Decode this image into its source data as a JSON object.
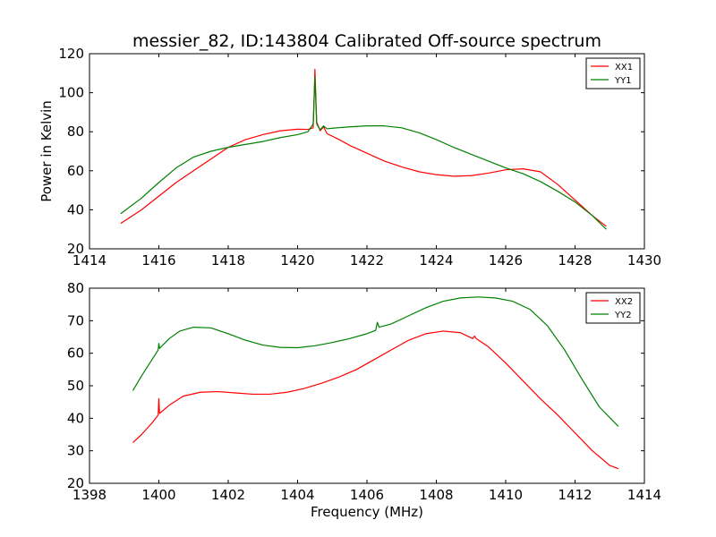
{
  "title": "messier_82, ID:143804 Calibrated Off-source spectrum",
  "chart_data": [
    {
      "type": "line",
      "xlim": [
        1414,
        1430
      ],
      "ylim": [
        20,
        120
      ],
      "xticks": [
        "1414",
        "1416",
        "1418",
        "1420",
        "1422",
        "1424",
        "1426",
        "1428",
        "1430"
      ],
      "yticks": [
        "20",
        "40",
        "60",
        "80",
        "100",
        "120"
      ],
      "xlabel": "",
      "ylabel": "Power in Kelvin",
      "legend": "top-right",
      "grid": false,
      "series": [
        {
          "name": "XX1",
          "color": "#ff0000",
          "points": [
            [
              1414.9,
              33
            ],
            [
              1415.5,
              40
            ],
            [
              1416.0,
              47
            ],
            [
              1416.5,
              54
            ],
            [
              1417.0,
              60
            ],
            [
              1417.5,
              66
            ],
            [
              1418.0,
              72
            ],
            [
              1418.5,
              76
            ],
            [
              1419.0,
              78.5
            ],
            [
              1419.5,
              80.5
            ],
            [
              1420.0,
              81.3
            ],
            [
              1420.3,
              81.2
            ],
            [
              1420.45,
              82
            ],
            [
              1420.5,
              112
            ],
            [
              1420.55,
              85
            ],
            [
              1420.65,
              80.5
            ],
            [
              1420.75,
              82.5
            ],
            [
              1420.85,
              79
            ],
            [
              1421.2,
              76
            ],
            [
              1421.5,
              73
            ],
            [
              1422.0,
              69
            ],
            [
              1422.5,
              65
            ],
            [
              1423.0,
              62
            ],
            [
              1423.5,
              59.5
            ],
            [
              1424.0,
              58
            ],
            [
              1424.5,
              57.2
            ],
            [
              1425.0,
              57.5
            ],
            [
              1425.5,
              58.8
            ],
            [
              1426.0,
              60.5
            ],
            [
              1426.5,
              61
            ],
            [
              1427.0,
              59.5
            ],
            [
              1427.5,
              53
            ],
            [
              1428.0,
              45
            ],
            [
              1428.5,
              37
            ],
            [
              1428.9,
              31.5
            ]
          ]
        },
        {
          "name": "YY1",
          "color": "#008000",
          "points": [
            [
              1414.9,
              38
            ],
            [
              1415.5,
              46
            ],
            [
              1416.0,
              54
            ],
            [
              1416.5,
              61.5
            ],
            [
              1417.0,
              67
            ],
            [
              1417.5,
              70
            ],
            [
              1418.0,
              72
            ],
            [
              1418.5,
              73.5
            ],
            [
              1419.0,
              75
            ],
            [
              1419.5,
              77
            ],
            [
              1420.0,
              78.5
            ],
            [
              1420.3,
              80
            ],
            [
              1420.45,
              84
            ],
            [
              1420.5,
              108
            ],
            [
              1420.55,
              84
            ],
            [
              1420.65,
              81
            ],
            [
              1420.75,
              83
            ],
            [
              1420.85,
              81.5
            ],
            [
              1421.0,
              81.8
            ],
            [
              1421.5,
              82.5
            ],
            [
              1422.0,
              83
            ],
            [
              1422.5,
              83
            ],
            [
              1423.0,
              82
            ],
            [
              1423.5,
              79.5
            ],
            [
              1424.0,
              76
            ],
            [
              1424.5,
              72
            ],
            [
              1425.0,
              68.5
            ],
            [
              1425.5,
              65
            ],
            [
              1426.0,
              61.5
            ],
            [
              1426.5,
              58.5
            ],
            [
              1427.0,
              54.5
            ],
            [
              1427.5,
              49.5
            ],
            [
              1428.0,
              44
            ],
            [
              1428.5,
              37
            ],
            [
              1428.9,
              30
            ]
          ]
        }
      ]
    },
    {
      "type": "line",
      "xlim": [
        1398,
        1414
      ],
      "ylim": [
        20,
        80
      ],
      "xticks": [
        "1398",
        "1400",
        "1402",
        "1404",
        "1406",
        "1408",
        "1410",
        "1412",
        "1414"
      ],
      "yticks": [
        "20",
        "30",
        "40",
        "50",
        "60",
        "70",
        "80"
      ],
      "xlabel": "Frequency (MHz)",
      "ylabel": "",
      "legend": "top-right",
      "grid": false,
      "series": [
        {
          "name": "XX2",
          "color": "#ff0000",
          "points": [
            [
              1399.25,
              32.5
            ],
            [
              1399.5,
              35
            ],
            [
              1399.8,
              38.5
            ],
            [
              1399.98,
              41
            ],
            [
              1400.0,
              46
            ],
            [
              1400.02,
              41.5
            ],
            [
              1400.3,
              44
            ],
            [
              1400.7,
              46.8
            ],
            [
              1401.2,
              48
            ],
            [
              1401.7,
              48.2
            ],
            [
              1402.2,
              47.8
            ],
            [
              1402.7,
              47.4
            ],
            [
              1403.2,
              47.4
            ],
            [
              1403.7,
              48
            ],
            [
              1404.2,
              49.2
            ],
            [
              1404.7,
              50.8
            ],
            [
              1405.2,
              52.7
            ],
            [
              1405.7,
              55
            ],
            [
              1406.2,
              58
            ],
            [
              1406.7,
              61
            ],
            [
              1407.2,
              64
            ],
            [
              1407.7,
              66
            ],
            [
              1408.2,
              66.8
            ],
            [
              1408.7,
              66.3
            ],
            [
              1409.05,
              64.5
            ],
            [
              1409.1,
              65.3
            ],
            [
              1409.15,
              64.5
            ],
            [
              1409.5,
              62
            ],
            [
              1410.0,
              57
            ],
            [
              1410.5,
              51.5
            ],
            [
              1411.0,
              46
            ],
            [
              1411.5,
              41
            ],
            [
              1412.0,
              35.5
            ],
            [
              1412.5,
              30
            ],
            [
              1413.0,
              25.5
            ],
            [
              1413.25,
              24.5
            ]
          ]
        },
        {
          "name": "YY2",
          "color": "#008000",
          "points": [
            [
              1399.25,
              48.5
            ],
            [
              1399.5,
              53
            ],
            [
              1399.8,
              58
            ],
            [
              1399.98,
              61
            ],
            [
              1400.0,
              63
            ],
            [
              1400.02,
              61.5
            ],
            [
              1400.3,
              64.5
            ],
            [
              1400.6,
              66.8
            ],
            [
              1401.0,
              68
            ],
            [
              1401.5,
              67.8
            ],
            [
              1402.0,
              66
            ],
            [
              1402.5,
              64
            ],
            [
              1403.0,
              62.5
            ],
            [
              1403.5,
              61.8
            ],
            [
              1404.0,
              61.7
            ],
            [
              1404.5,
              62.3
            ],
            [
              1405.0,
              63.3
            ],
            [
              1405.5,
              64.5
            ],
            [
              1406.0,
              66
            ],
            [
              1406.25,
              67
            ],
            [
              1406.3,
              69.5
            ],
            [
              1406.35,
              68
            ],
            [
              1406.7,
              69
            ],
            [
              1407.2,
              71.5
            ],
            [
              1407.7,
              74
            ],
            [
              1408.2,
              76
            ],
            [
              1408.7,
              77
            ],
            [
              1409.2,
              77.3
            ],
            [
              1409.7,
              77
            ],
            [
              1410.2,
              76
            ],
            [
              1410.7,
              73.5
            ],
            [
              1411.2,
              68.5
            ],
            [
              1411.7,
              61
            ],
            [
              1412.2,
              52
            ],
            [
              1412.7,
              43.5
            ],
            [
              1413.25,
              37.5
            ]
          ]
        }
      ]
    }
  ]
}
